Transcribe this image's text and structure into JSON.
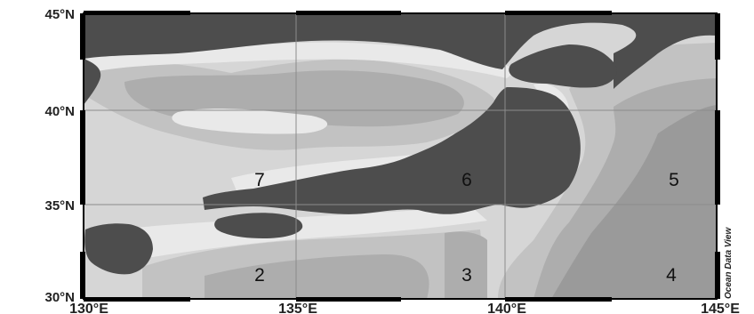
{
  "map": {
    "lat_labels": [
      "45°N",
      "40°N",
      "35°N",
      "30°N"
    ],
    "lon_labels": [
      "130°E",
      "135°E",
      "140°E",
      "145°E"
    ],
    "region_labels": [
      "7",
      "6",
      "5",
      "2",
      "3",
      "4"
    ],
    "watermark": "Ocean Data View",
    "colors": {
      "land": "#4d4d4d",
      "shelf": "#e9e9e9",
      "shallow": "#d6d6d6",
      "mid": "#c2c2c2",
      "deep": "#adadad",
      "deepest": "#9a9a9a",
      "grid": "#8c8c8c",
      "frame": "#000000"
    }
  }
}
